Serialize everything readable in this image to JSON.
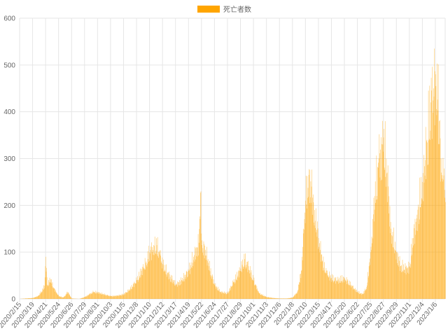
{
  "chart_data": {
    "type": "bar",
    "series": [
      {
        "name": "死亡者数",
        "color": "#FFA500",
        "points": [
          [
            "2020/2/15",
            0
          ],
          [
            "2020/3/1",
            1
          ],
          [
            "2020/3/19",
            2
          ],
          [
            "2020/4/1",
            6
          ],
          [
            "2020/4/10",
            15
          ],
          [
            "2020/4/18",
            28
          ],
          [
            "2020/4/21",
            90
          ],
          [
            "2020/4/25",
            30
          ],
          [
            "2020/5/3",
            42
          ],
          [
            "2020/5/10",
            25
          ],
          [
            "2020/5/20",
            12
          ],
          [
            "2020/5/24",
            6
          ],
          [
            "2020/6/5",
            3
          ],
          [
            "2020/6/16",
            15
          ],
          [
            "2020/6/26",
            1
          ],
          [
            "2020/7/15",
            0
          ],
          [
            "2020/7/29",
            4
          ],
          [
            "2020/8/10",
            10
          ],
          [
            "2020/8/20",
            15
          ],
          [
            "2020/8/31",
            14
          ],
          [
            "2020/9/15",
            10
          ],
          [
            "2020/10/3",
            6
          ],
          [
            "2020/10/20",
            7
          ],
          [
            "2020/11/5",
            10
          ],
          [
            "2020/11/20",
            20
          ],
          [
            "2020/12/8",
            40
          ],
          [
            "2020/12/20",
            60
          ],
          [
            "2021/1/1",
            80
          ],
          [
            "2021/1/10",
            100
          ],
          [
            "2021/1/20",
            115
          ],
          [
            "2021/1/28",
            115
          ],
          [
            "2021/2/5",
            95
          ],
          [
            "2021/2/12",
            75
          ],
          [
            "2021/2/25",
            55
          ],
          [
            "2021/3/10",
            40
          ],
          [
            "2021/3/17",
            30
          ],
          [
            "2021/4/1",
            40
          ],
          [
            "2021/4/19",
            60
          ],
          [
            "2021/5/1",
            90
          ],
          [
            "2021/5/10",
            110
          ],
          [
            "2021/5/15",
            120
          ],
          [
            "2021/5/19",
            227
          ],
          [
            "2021/5/22",
            115
          ],
          [
            "2021/6/1",
            105
          ],
          [
            "2021/6/10",
            70
          ],
          [
            "2021/6/24",
            30
          ],
          [
            "2021/7/10",
            15
          ],
          [
            "2021/7/27",
            12
          ],
          [
            "2021/8/10",
            35
          ],
          [
            "2021/8/29",
            65
          ],
          [
            "2021/9/8",
            85
          ],
          [
            "2021/9/18",
            70
          ],
          [
            "2021/10/1",
            40
          ],
          [
            "2021/10/15",
            12
          ],
          [
            "2021/11/3",
            4
          ],
          [
            "2021/11/20",
            2
          ],
          [
            "2021/12/6",
            1
          ],
          [
            "2021/12/25",
            1
          ],
          [
            "2022/1/8",
            3
          ],
          [
            "2022/1/20",
            15
          ],
          [
            "2022/1/30",
            60
          ],
          [
            "2022/2/5",
            140
          ],
          [
            "2022/2/10",
            210
          ],
          [
            "2022/2/18",
            265
          ],
          [
            "2022/2/25",
            240
          ],
          [
            "2022/3/5",
            190
          ],
          [
            "2022/3/15",
            130
          ],
          [
            "2022/3/25",
            80
          ],
          [
            "2022/4/5",
            55
          ],
          [
            "2022/4/17",
            45
          ],
          [
            "2022/5/1",
            40
          ],
          [
            "2022/5/20",
            45
          ],
          [
            "2022/6/5",
            30
          ],
          [
            "2022/6/22",
            15
          ],
          [
            "2022/7/5",
            10
          ],
          [
            "2022/7/15",
            25
          ],
          [
            "2022/7/25",
            100
          ],
          [
            "2022/8/5",
            220
          ],
          [
            "2022/8/15",
            300
          ],
          [
            "2022/8/25",
            330
          ],
          [
            "2022/8/27",
            345
          ],
          [
            "2022/9/5",
            270
          ],
          [
            "2022/9/15",
            150
          ],
          [
            "2022/9/29",
            100
          ],
          [
            "2022/10/10",
            70
          ],
          [
            "2022/10/25",
            65
          ],
          [
            "2022/11/1",
            70
          ],
          [
            "2022/11/10",
            130
          ],
          [
            "2022/11/20",
            180
          ],
          [
            "2022/12/4",
            250
          ],
          [
            "2022/12/15",
            340
          ],
          [
            "2022/12/25",
            420
          ],
          [
            "2023/1/1",
            450
          ],
          [
            "2023/1/6",
            480
          ],
          [
            "2023/1/10",
            503
          ],
          [
            "2023/1/15",
            380
          ],
          [
            "2023/1/20",
            300
          ],
          [
            "2023/1/26",
            255
          ]
        ]
      }
    ],
    "xlabels": [
      "2020/2/15",
      "2020/3/19",
      "2020/4/21",
      "2020/5/24",
      "2020/6/26",
      "2020/7/29",
      "2020/8/31",
      "2020/10/3",
      "2020/11/5",
      "2020/12/8",
      "2021/1/10",
      "2021/2/12",
      "2021/3/17",
      "2021/4/19",
      "2021/5/22",
      "2021/6/24",
      "2021/7/27",
      "2021/8/29",
      "2021/10/1",
      "2021/11/3",
      "2021/12/6",
      "2022/1/8",
      "2022/2/10",
      "2022/3/15",
      "2022/4/17",
      "2022/5/20",
      "2022/6/22",
      "2022/7/25",
      "2022/8/27",
      "2022/9/29",
      "2022/11/1",
      "2022/12/4",
      "2023/1/6"
    ],
    "yticks": [
      0,
      100,
      200,
      300,
      400,
      500,
      600
    ],
    "ylim": [
      0,
      600
    ],
    "xlim": [
      "2020/2/15",
      "2023/1/31"
    ],
    "grid": true,
    "legend": "top-center"
  }
}
